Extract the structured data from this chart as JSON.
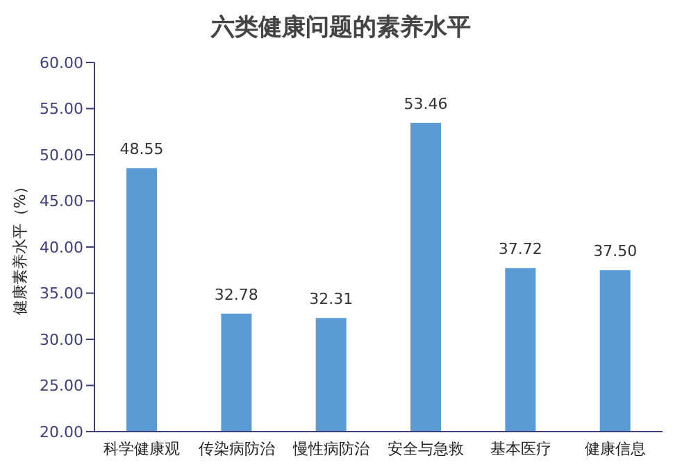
{
  "chart_data": {
    "type": "bar",
    "title": "六类健康问题的素养水平",
    "ylabel": "健康素养水平（%）",
    "categories": [
      "科学健康观",
      "传染病防治",
      "慢性病防治",
      "安全与急救",
      "基本医疗",
      "健康信息"
    ],
    "values": [
      48.55,
      32.78,
      32.31,
      53.46,
      37.72,
      37.5
    ],
    "value_labels": [
      "48.55",
      "32.78",
      "32.31",
      "53.46",
      "37.72",
      "37.50"
    ],
    "color": "#5b9bd5",
    "ylim": [
      20,
      60
    ],
    "yticks": [
      {
        "value": 20,
        "label": "20.00"
      },
      {
        "value": 25,
        "label": "25.00"
      },
      {
        "value": 30,
        "label": "30.00"
      },
      {
        "value": 35,
        "label": "35.00"
      },
      {
        "value": 40,
        "label": "40.00"
      },
      {
        "value": 45,
        "label": "45.00"
      },
      {
        "value": 50,
        "label": "50.00"
      },
      {
        "value": 55,
        "label": "55.00"
      },
      {
        "value": 60,
        "label": "60.00"
      }
    ],
    "grid": false,
    "legend": false
  }
}
